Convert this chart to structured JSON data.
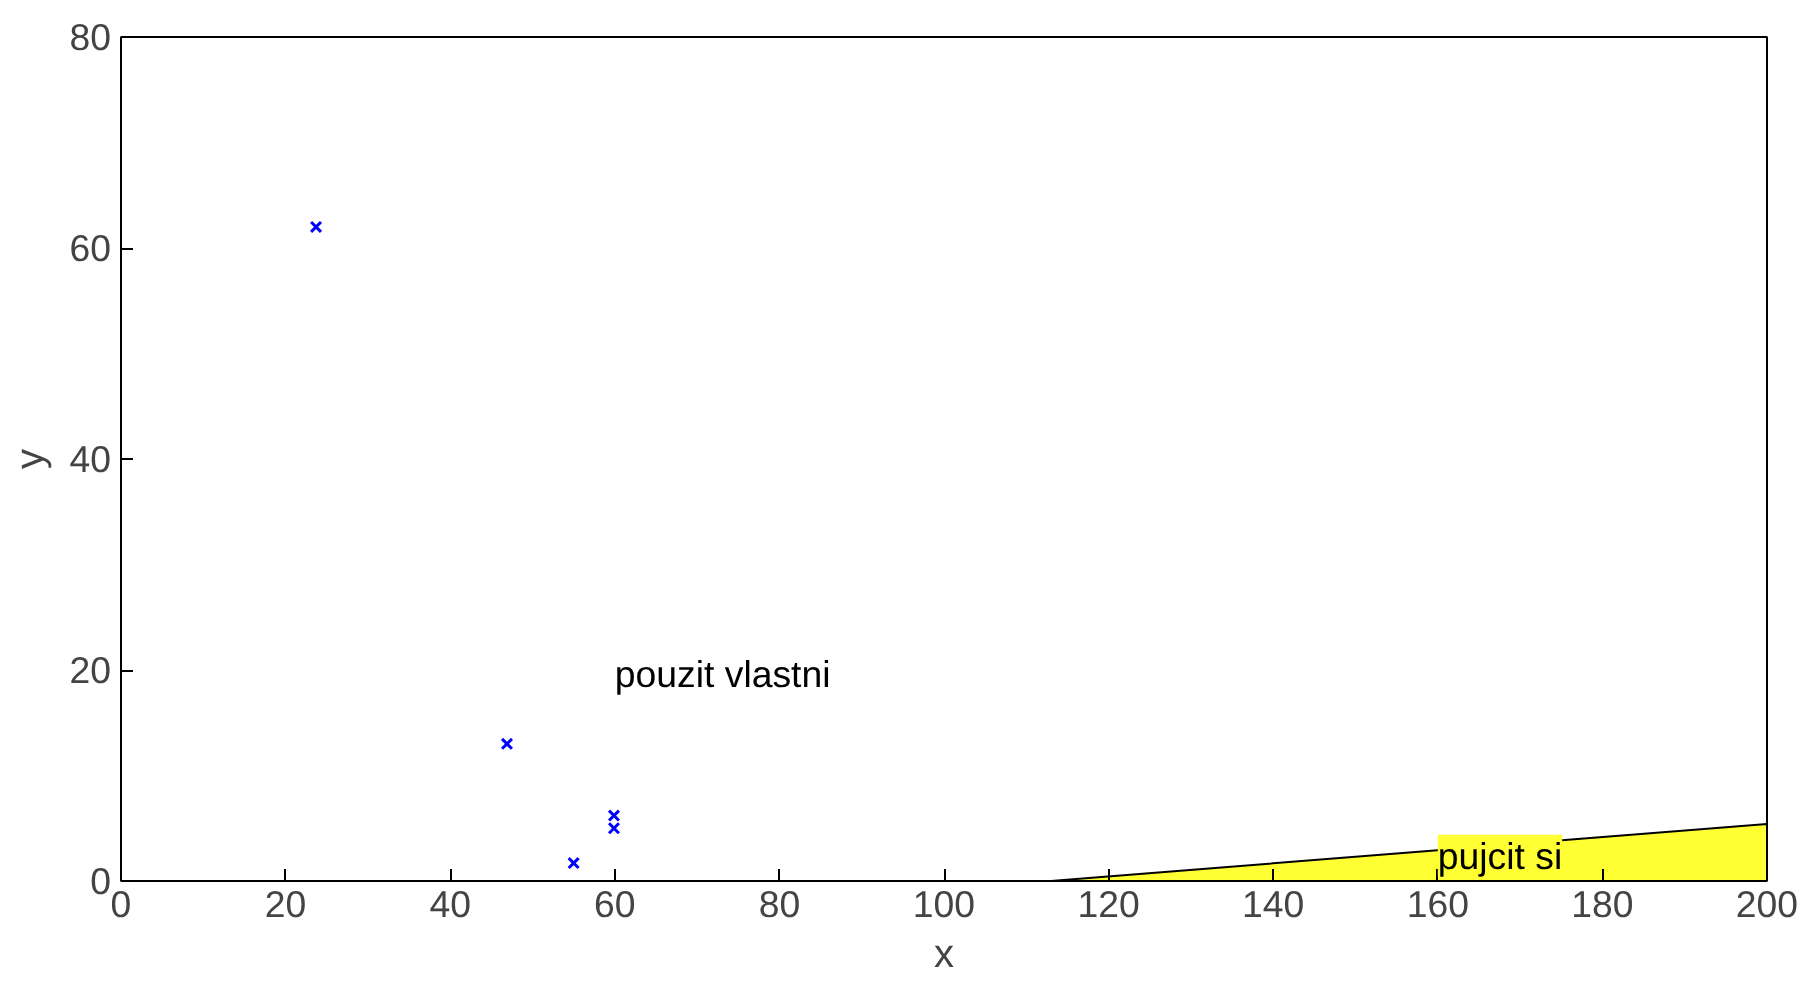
{
  "chart_data": {
    "type": "scatter",
    "xlabel": "x",
    "ylabel": "y",
    "xlim": [
      0,
      200
    ],
    "ylim": [
      0,
      80
    ],
    "xticks": [
      0,
      20,
      40,
      60,
      80,
      100,
      120,
      140,
      160,
      180,
      200
    ],
    "yticks": [
      0,
      20,
      40,
      60,
      80
    ],
    "grid": false,
    "series": [
      {
        "color": "#0000ff",
        "marker": "cross",
        "x": [
          23.7,
          46.9,
          55.0,
          59.9,
          59.9
        ],
        "values": [
          62,
          13,
          1.7,
          6.2,
          5.0
        ]
      },
      {
        "type": "area",
        "color": "#ffff33",
        "x": [
          113,
          200
        ],
        "values": [
          0,
          5.4
        ]
      }
    ],
    "annotations": [
      "pouzit vlastni",
      "pujcit si"
    ]
  }
}
